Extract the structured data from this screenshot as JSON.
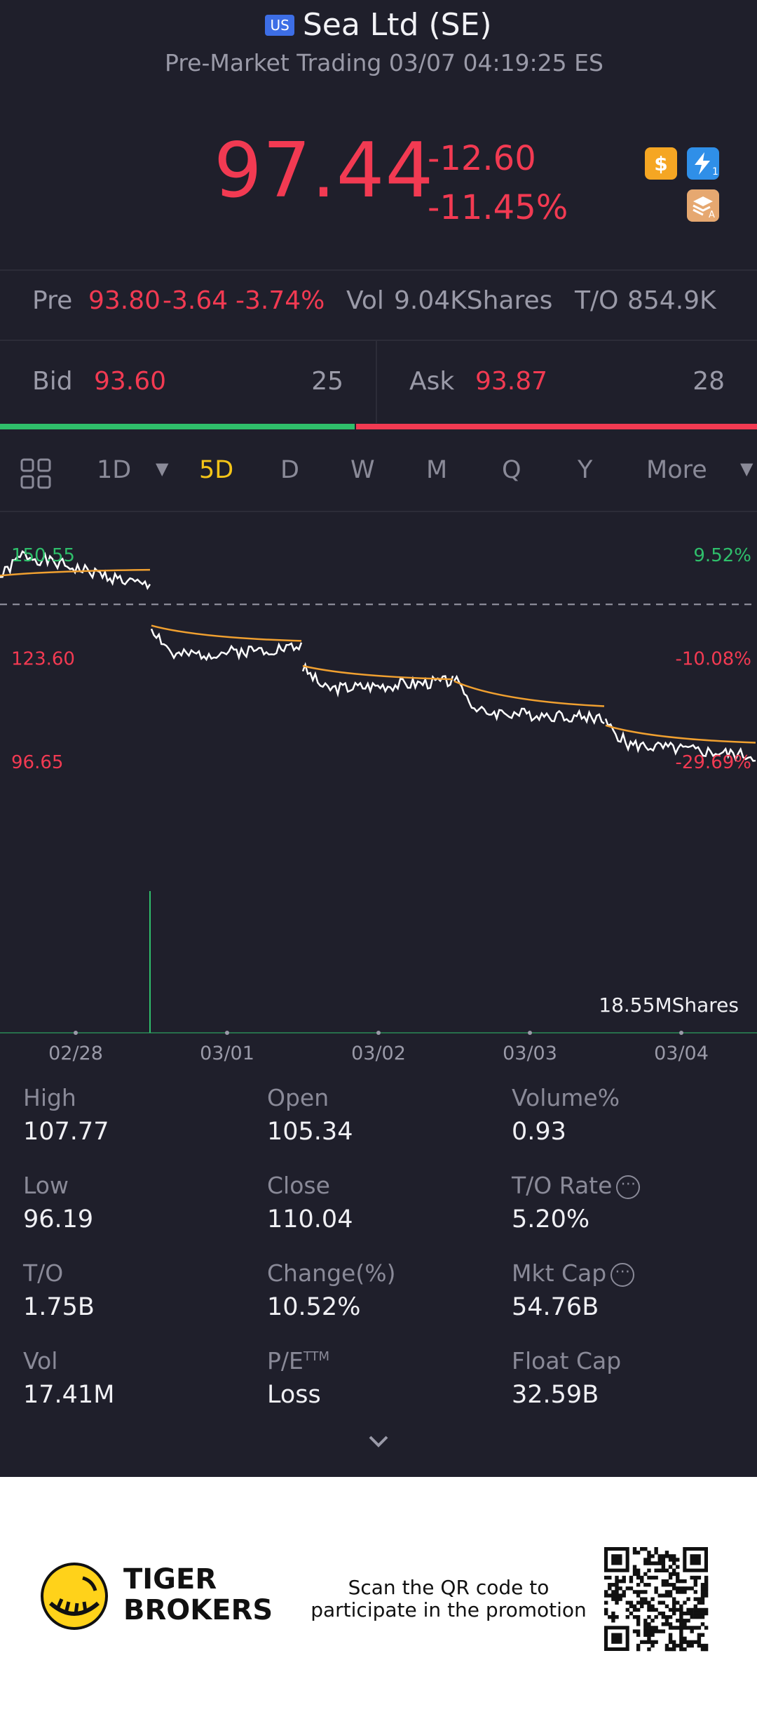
{
  "header": {
    "market_badge": "US",
    "title": "Sea Ltd (SE)",
    "subtitle": "Pre-Market Trading 03/07 04:19:25 ES"
  },
  "quote": {
    "price": "97.44",
    "change": "-12.60",
    "change_pct": "-11.45%",
    "icons": [
      "dollar-icon",
      "flash-1-icon",
      "stack-a-icon"
    ]
  },
  "premarket": {
    "pre_label": "Pre",
    "pre_price": "93.80",
    "pre_change": "-3.64",
    "pre_pct": "-3.74%",
    "vol_label": "Vol",
    "vol_value": "9.04KShares",
    "to_label": "T/O",
    "to_value": "854.9K"
  },
  "orderbook": {
    "bid_label": "Bid",
    "bid_price": "93.60",
    "bid_size": "25",
    "ask_label": "Ask",
    "ask_price": "93.87",
    "ask_size": "28",
    "bid_fraction": 0.47
  },
  "tabs": {
    "items": [
      "1D",
      "5D",
      "D",
      "W",
      "M",
      "Q",
      "Y",
      "More"
    ],
    "active": "5D"
  },
  "chart_data": {
    "type": "line",
    "title": "",
    "price_labels": [
      "150.55",
      "123.60",
      "96.65"
    ],
    "pct_labels": [
      "9.52%",
      "-10.08%",
      "-29.69%"
    ],
    "x_labels": [
      "02/28",
      "03/01",
      "03/02",
      "03/03",
      "03/04"
    ],
    "volume_label": "18.55MShares",
    "ylim": [
      96.65,
      150.55
    ],
    "reference_price": 137.5,
    "series": [
      {
        "x": [
          "02/28 open",
          "02/28 mid",
          "02/28 close",
          "03/01 open",
          "03/01 mid",
          "03/01 close",
          "03/02 open",
          "03/02 mid",
          "03/02 close",
          "03/03 open",
          "03/03 mid",
          "03/03 close",
          "03/04 open",
          "03/04 mid",
          "03/04 close"
        ],
        "values": [
          144.5,
          150.4,
          142.0,
          131.5,
          124.0,
          126.5,
          121.0,
          115.5,
          117.5,
          119.0,
          109.5,
          108.0,
          106.5,
          101.0,
          98.0
        ]
      },
      {
        "x": [
          "02/28 open",
          "02/28 close",
          "03/01 open",
          "03/01 close",
          "03/02 open",
          "03/02 close",
          "03/03 open",
          "03/03 close",
          "03/04 open",
          "03/04 close"
        ],
        "values": [
          145.0,
          146.5,
          132.0,
          128.0,
          121.5,
          118.0,
          117.5,
          111.0,
          106.0,
          101.5
        ]
      }
    ],
    "grid": false
  },
  "stats": [
    {
      "label": "High",
      "value": "107.77"
    },
    {
      "label": "Open",
      "value": "105.34"
    },
    {
      "label": "Volume%",
      "value": "0.93"
    },
    {
      "label": "Low",
      "value": "96.19"
    },
    {
      "label": "Close",
      "value": "110.04"
    },
    {
      "label": "T/O Rate",
      "value": "5.20%"
    },
    {
      "label": "T/O",
      "value": "1.75B"
    },
    {
      "label": "Change(%)",
      "value": "10.52%"
    },
    {
      "label": "Mkt Cap",
      "value": "54.76B"
    },
    {
      "label": "Vol",
      "value": "17.41M"
    },
    {
      "label": "P/E",
      "label_sup": "TTM",
      "value": "Loss"
    },
    {
      "label": "Float Cap",
      "value": "32.59B"
    }
  ],
  "footer": {
    "brand_line1": "TIGER",
    "brand_line2": "BROKERS",
    "promo_line1": "Scan the QR code to",
    "promo_line2": "participate in the promotion"
  },
  "colors": {
    "background": "#1f1f2b",
    "down": "#f23a52",
    "up": "#2fbf6b",
    "active_tab": "#f5c518",
    "avg_line": "#f0a030",
    "price_line": "#ffffff"
  }
}
